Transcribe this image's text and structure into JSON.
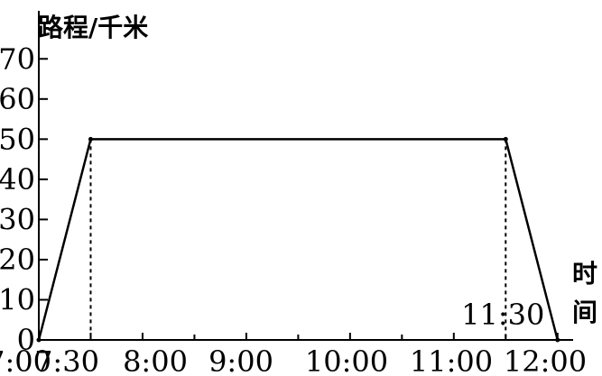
{
  "chart_data": {
    "type": "line",
    "ylabel": "路程/千米",
    "xlabel_chars": [
      "时",
      "间"
    ],
    "yticks": [
      0,
      10,
      20,
      30,
      40,
      50,
      60,
      70
    ],
    "ylim": [
      0,
      75
    ],
    "xticks": [
      "7:00",
      "7:30",
      "8:00",
      "9:00",
      "10:00",
      "11:00",
      "12:00"
    ],
    "xtick_hours": [
      7,
      7.5,
      8,
      9,
      10,
      11,
      12
    ],
    "xlim_hours": [
      7,
      12.15
    ],
    "x": [
      "7:00",
      "7:30",
      "11:30",
      "12:00"
    ],
    "x_hours": [
      7,
      7.5,
      11.5,
      12
    ],
    "values": [
      0,
      50,
      50,
      0
    ],
    "annotations": [
      {
        "text": "11:30",
        "x_hours": 11.5
      }
    ],
    "dashed_drop_lines_hours": [
      7.5,
      11.5
    ],
    "grid": false,
    "colors": {
      "line": "#000000",
      "axis": "#000000",
      "background": "#ffffff"
    }
  }
}
